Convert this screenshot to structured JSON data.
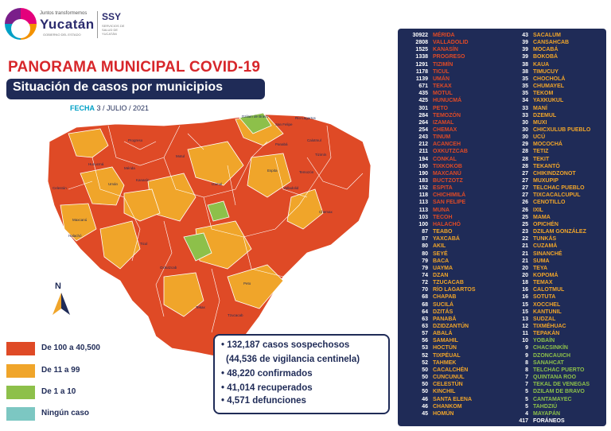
{
  "header": {
    "logo_small": "Juntos transformemos",
    "logo_big": "Yucatán",
    "logo_gov": "GOBIERNO DEL ESTADO",
    "ssy": "SSY",
    "ssy_sub": "SERVICIOS DE SALUD DE YUCATÁN"
  },
  "title": "PANORAMA MUNICIPAL COVID-19",
  "subtitle": "Situación de casos por municipios",
  "date": {
    "label": "FECHA",
    "value": "3 / JULIO / 2021"
  },
  "north_label": "N",
  "colors": {
    "red": "#df4a26",
    "orange": "#f0a52a",
    "green": "#8dc04a",
    "teal": "#7cc7c2",
    "navy": "#1f2b57",
    "title_red": "#d7262a"
  },
  "legend": [
    {
      "label": "De 100 a 40,500",
      "color": "#df4a26"
    },
    {
      "label": "De 11 a 99",
      "color": "#f0a52a"
    },
    {
      "label": "De 1 a 10",
      "color": "#8dc04a"
    },
    {
      "label": "Ningún caso",
      "color": "#7cc7c2"
    }
  ],
  "summary": [
    "• 132,187 casos sospechosos",
    "(44,536 de vigilancia centinela)",
    "• 48,220 confirmados",
    "• 41,014 recuperados",
    "• 4,571 defunciones"
  ],
  "map_labels": [
    "Dzilam de Bravo",
    "San Felipe",
    "Río Lagartos",
    "Panabá",
    "Tizimín",
    "Progreso",
    "Mérida",
    "Motul",
    "Izamal",
    "Kanasín",
    "Umán",
    "Tekax",
    "Valladolid",
    "Espita",
    "Chemax",
    "Peto",
    "Oxkutzcab",
    "Ticul",
    "Tzucacab",
    "Hunucmá",
    "Celestún",
    "Maxcanú",
    "Halachó",
    "Temozón",
    "Calotmul"
  ],
  "municipios_col1": [
    {
      "n": "30922",
      "name": "MÉRIDA"
    },
    {
      "n": "2808",
      "name": "VALLADOLID"
    },
    {
      "n": "1525",
      "name": "KANASÍN"
    },
    {
      "n": "1338",
      "name": "PROGRESO"
    },
    {
      "n": "1291",
      "name": "TIZIMÍN"
    },
    {
      "n": "1178",
      "name": "TICUL"
    },
    {
      "n": "1139",
      "name": "UMÁN"
    },
    {
      "n": "671",
      "name": "TEKAX"
    },
    {
      "n": "435",
      "name": "MOTUL"
    },
    {
      "n": "425",
      "name": "HUNUCMÁ"
    },
    {
      "n": "301",
      "name": "PETO"
    },
    {
      "n": "284",
      "name": "TEMOZÓN"
    },
    {
      "n": "264",
      "name": "IZAMAL"
    },
    {
      "n": "254",
      "name": "CHEMAX"
    },
    {
      "n": "243",
      "name": "TINUM"
    },
    {
      "n": "212",
      "name": "ACANCEH"
    },
    {
      "n": "211",
      "name": "OXKUTZCAB"
    },
    {
      "n": "194",
      "name": "CONKAL"
    },
    {
      "n": "190",
      "name": "TIXKOKOB"
    },
    {
      "n": "190",
      "name": "MAXCANÚ"
    },
    {
      "n": "183",
      "name": "BUCTZOTZ"
    },
    {
      "n": "152",
      "name": "ESPITA"
    },
    {
      "n": "118",
      "name": "CHICHIMILÁ"
    },
    {
      "n": "113",
      "name": "SAN FELIPE"
    },
    {
      "n": "113",
      "name": "MUNA"
    },
    {
      "n": "103",
      "name": "TECOH"
    },
    {
      "n": "100",
      "name": "HALACHÓ"
    },
    {
      "n": "87",
      "name": "TEABO"
    },
    {
      "n": "87",
      "name": "YAXCABÁ"
    },
    {
      "n": "80",
      "name": "AKIL"
    },
    {
      "n": "80",
      "name": "SEYÉ"
    },
    {
      "n": "79",
      "name": "BACA"
    },
    {
      "n": "79",
      "name": "UAYMA"
    },
    {
      "n": "74",
      "name": "DZAN"
    },
    {
      "n": "72",
      "name": "TZUCACAB"
    },
    {
      "n": "70",
      "name": "RÍO LAGARTOS"
    },
    {
      "n": "68",
      "name": "CHAPAB"
    },
    {
      "n": "68",
      "name": "SUCILÁ"
    },
    {
      "n": "64",
      "name": "DZITÁS"
    },
    {
      "n": "63",
      "name": "PANABÁ"
    },
    {
      "n": "63",
      "name": "DZIDZANTÚN"
    },
    {
      "n": "57",
      "name": "ABALÁ"
    },
    {
      "n": "56",
      "name": "SAMAHIL"
    },
    {
      "n": "53",
      "name": "HOCTÚN"
    },
    {
      "n": "52",
      "name": "TIXPÉUAL"
    },
    {
      "n": "52",
      "name": "TAHMEK"
    },
    {
      "n": "50",
      "name": "CACALCHÉN"
    },
    {
      "n": "50",
      "name": "CUNCUNUL"
    },
    {
      "n": "50",
      "name": "CELESTÚN"
    },
    {
      "n": "50",
      "name": "KINCHIL"
    },
    {
      "n": "46",
      "name": "SANTA ELENA"
    },
    {
      "n": "46",
      "name": "CHANKOM"
    },
    {
      "n": "45",
      "name": "HOMÚN"
    }
  ],
  "municipios_col2": [
    {
      "n": "43",
      "name": "SACALUM"
    },
    {
      "n": "39",
      "name": "CANSAHCAB"
    },
    {
      "n": "39",
      "name": "MOCABÁ"
    },
    {
      "n": "39",
      "name": "BOKOBÁ"
    },
    {
      "n": "38",
      "name": "KAUA"
    },
    {
      "n": "38",
      "name": "TIMUCUY"
    },
    {
      "n": "35",
      "name": "CHOCHOLÁ"
    },
    {
      "n": "35",
      "name": "CHUMAYEL"
    },
    {
      "n": "35",
      "name": "TEKOM"
    },
    {
      "n": "34",
      "name": "YAXKUKUL"
    },
    {
      "n": "33",
      "name": "MANÍ"
    },
    {
      "n": "33",
      "name": "DZEMUL"
    },
    {
      "n": "30",
      "name": "MUXI"
    },
    {
      "n": "30",
      "name": "CHICXULUB PUEBLO"
    },
    {
      "n": "30",
      "name": "UCÚ"
    },
    {
      "n": "29",
      "name": "MOCOCHÁ"
    },
    {
      "n": "28",
      "name": "TETIZ"
    },
    {
      "n": "28",
      "name": "TEKIT"
    },
    {
      "n": "28",
      "name": "TEKANTÓ"
    },
    {
      "n": "27",
      "name": "CHIKINDZONOT"
    },
    {
      "n": "27",
      "name": "MUXUPIP"
    },
    {
      "n": "27",
      "name": "TELCHAC PUEBLO"
    },
    {
      "n": "27",
      "name": "TIXCACALCUPUL"
    },
    {
      "n": "26",
      "name": "CENOTILLO"
    },
    {
      "n": "26",
      "name": "IXIL"
    },
    {
      "n": "25",
      "name": "MAMA"
    },
    {
      "n": "25",
      "name": "OPICHÉN"
    },
    {
      "n": "23",
      "name": "DZILAM GONZÁLEZ"
    },
    {
      "n": "22",
      "name": "TUNKÁS"
    },
    {
      "n": "21",
      "name": "CUZAMÁ"
    },
    {
      "n": "21",
      "name": "SINANCHÉ"
    },
    {
      "n": "21",
      "name": "SUMA"
    },
    {
      "n": "20",
      "name": "TEYA"
    },
    {
      "n": "20",
      "name": "KOPOMÁ"
    },
    {
      "n": "18",
      "name": "TEMAX"
    },
    {
      "n": "16",
      "name": "CALOTMUL"
    },
    {
      "n": "16",
      "name": "SOTUTA"
    },
    {
      "n": "15",
      "name": "XOCCHEL"
    },
    {
      "n": "15",
      "name": "KANTUNIL"
    },
    {
      "n": "13",
      "name": "SUDZAL"
    },
    {
      "n": "12",
      "name": "TIXMÉHUAC"
    },
    {
      "n": "11",
      "name": "TEPAKÁN"
    },
    {
      "n": "10",
      "name": "YOBAÍN"
    },
    {
      "n": "9",
      "name": "CHACSINKÍN"
    },
    {
      "n": "9",
      "name": "DZONCAUICH"
    },
    {
      "n": "8",
      "name": "SANAHCAT"
    },
    {
      "n": "8",
      "name": "TELCHAC PUERTO"
    },
    {
      "n": "7",
      "name": "QUINTANA ROO"
    },
    {
      "n": "7",
      "name": "TEKAL DE VENEGAS"
    },
    {
      "n": "5",
      "name": "DZILAM DE BRAVO"
    },
    {
      "n": "5",
      "name": "CANTAMAYEC"
    },
    {
      "n": "5",
      "name": "TAHDZIÚ"
    },
    {
      "n": "4",
      "name": "MAYAPÁN"
    },
    {
      "n": "417",
      "name": "FORÁNEOS"
    }
  ]
}
